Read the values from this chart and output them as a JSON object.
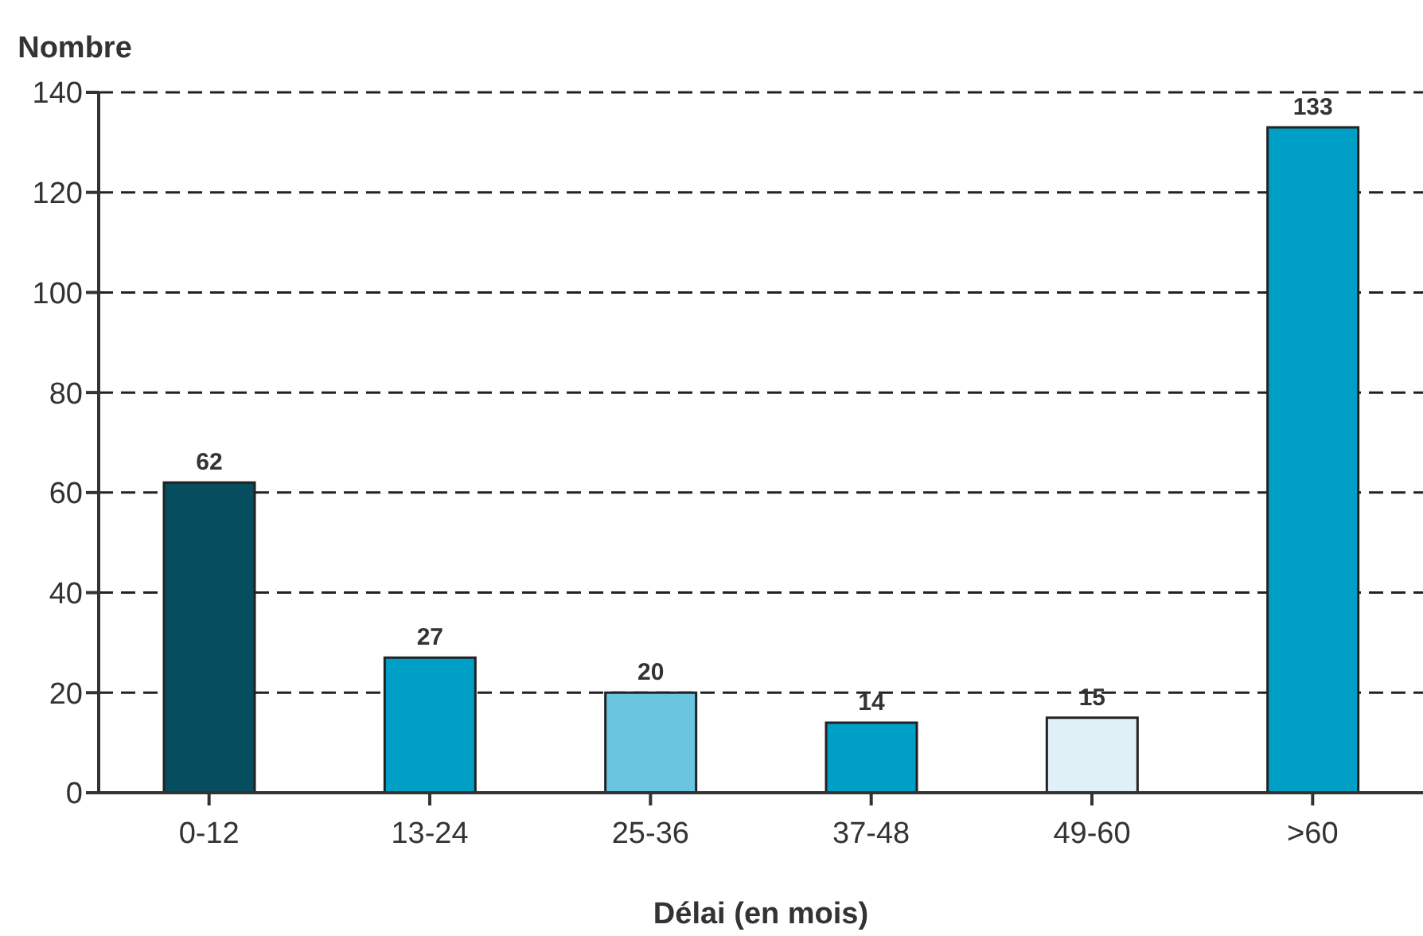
{
  "chart_data": {
    "type": "bar",
    "ylabel": "Nombre",
    "xlabel": "Délai (en mois)",
    "categories": [
      "0-12",
      "13-24",
      "25-36",
      "37-48",
      "49-60",
      ">60"
    ],
    "values": [
      62,
      27,
      20,
      14,
      15,
      133
    ],
    "colors": [
      "#064d5f",
      "#009fc6",
      "#69c5e0",
      "#009fc6",
      "#e0f0f7",
      "#009fc6"
    ],
    "ylim": [
      0,
      140
    ],
    "yticks": [
      0,
      20,
      40,
      60,
      80,
      100,
      120,
      140
    ],
    "grid": "y",
    "data_labels": true
  }
}
